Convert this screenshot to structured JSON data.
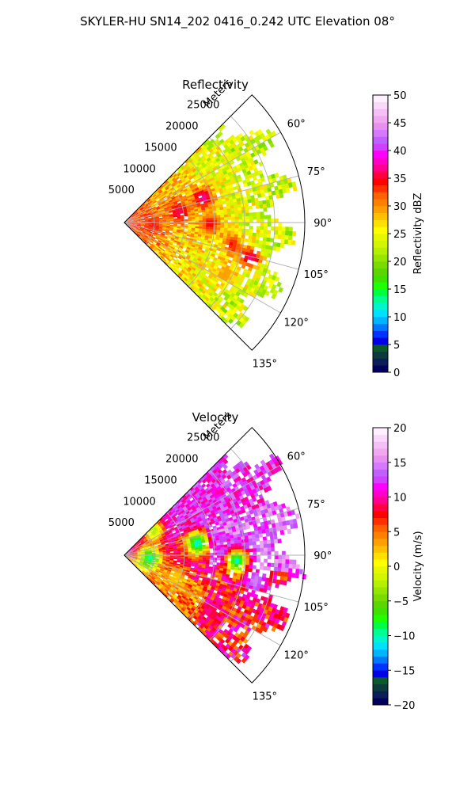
{
  "figure_title": "SKYLER-HU  SN14_202  0416_0.242 UTC Elevation 08°",
  "chart_data": [
    {
      "type": "heatmap",
      "projection": "polar-sector",
      "title": "Reflectivity",
      "radial_axis_label": "Meters",
      "radial_ticks": [
        "5000",
        "10000",
        "15000",
        "20000",
        "25000"
      ],
      "radial_tick_values": [
        5000,
        10000,
        15000,
        20000,
        25000
      ],
      "radial_max": 30000,
      "angle_ticks": [
        "60°",
        "75°",
        "90°",
        "105°",
        "120°",
        "135°"
      ],
      "angle_tick_values": [
        60,
        75,
        90,
        105,
        120,
        135
      ],
      "azimuth_range": [
        45,
        135
      ],
      "grid": true,
      "colorbar": {
        "label": "Reflectivity dBZ",
        "ticks": [
          "0",
          "5",
          "10",
          "15",
          "20",
          "25",
          "30",
          "35",
          "40",
          "45",
          "50"
        ],
        "range": [
          0,
          50
        ],
        "colors": [
          "#00005c",
          "#0a1f5a",
          "#0d3a3a",
          "#0a5a2a",
          "#0000e6",
          "#0033ff",
          "#0077ff",
          "#00b4ff",
          "#00e0ff",
          "#00f5d0",
          "#00ff90",
          "#00ff40",
          "#20ff00",
          "#40e000",
          "#5cd600",
          "#78dc00",
          "#96e600",
          "#b4f000",
          "#d2f500",
          "#e6f800",
          "#ffff00",
          "#ffe000",
          "#ffc000",
          "#ffa000",
          "#ff8000",
          "#ff6000",
          "#ff3000",
          "#ff0000",
          "#ff0040",
          "#ff0090",
          "#ff00c8",
          "#ff00ff",
          "#d040ff",
          "#c060ff",
          "#d878ff",
          "#e890f0",
          "#f0a8f0",
          "#f5c0f5",
          "#fad8fa",
          "#fff0ff"
        ]
      },
      "dominant_values_note_range": [
        18,
        38
      ],
      "hotspots": [
        {
          "azimuth": 78,
          "range": 9000,
          "value": 36
        },
        {
          "azimuth": 72,
          "range": 13500,
          "value": 37
        },
        {
          "azimuth": 90,
          "range": 14000,
          "value": 35
        },
        {
          "azimuth": 94,
          "range": 4500,
          "value": 34
        },
        {
          "azimuth": 101,
          "range": 18000,
          "value": 34
        },
        {
          "azimuth": 105,
          "range": 21500,
          "value": 37
        },
        {
          "azimuth": 116,
          "range": 18500,
          "value": 30
        }
      ]
    },
    {
      "type": "heatmap",
      "projection": "polar-sector",
      "title": "Velocity",
      "radial_axis_label": "Meters",
      "radial_ticks": [
        "5000",
        "10000",
        "15000",
        "20000",
        "25000"
      ],
      "radial_tick_values": [
        5000,
        10000,
        15000,
        20000,
        25000
      ],
      "radial_max": 30000,
      "angle_ticks": [
        "60°",
        "75°",
        "90°",
        "105°",
        "120°",
        "135°"
      ],
      "angle_tick_values": [
        60,
        75,
        90,
        105,
        120,
        135
      ],
      "azimuth_range": [
        45,
        135
      ],
      "grid": true,
      "colorbar": {
        "label": "Velocity (m/s)",
        "ticks": [
          "−20",
          "−15",
          "−10",
          "−5",
          "0",
          "5",
          "10",
          "15",
          "20"
        ],
        "range": [
          -20,
          20
        ],
        "colors": [
          "#00005c",
          "#0a1f5a",
          "#0d3a3a",
          "#0a5a2a",
          "#0000e6",
          "#0033ff",
          "#0077ff",
          "#00b4ff",
          "#00e0ff",
          "#00f5d0",
          "#00ff90",
          "#00ff40",
          "#20ff00",
          "#40e000",
          "#5cd600",
          "#78dc00",
          "#96e600",
          "#b4f000",
          "#d2f500",
          "#e6f800",
          "#ffff00",
          "#ffe000",
          "#ffc000",
          "#ffa000",
          "#ff8000",
          "#ff6000",
          "#ff3000",
          "#ff0000",
          "#ff0040",
          "#ff0090",
          "#ff00c8",
          "#ff00ff",
          "#d040ff",
          "#c060ff",
          "#d878ff",
          "#e890f0",
          "#f0a8f0",
          "#f5c0f5",
          "#fad8fa",
          "#fff0ff"
        ]
      },
      "dominant_values_note_range": [
        5,
        15
      ],
      "hotspots": [
        {
          "azimuth": 80,
          "range": 12000,
          "value": -11
        },
        {
          "azimuth": 92,
          "range": 18500,
          "value": -11
        },
        {
          "azimuth": 96,
          "range": 4000,
          "value": -10
        },
        {
          "azimuth": 50,
          "range": 6000,
          "value": -3
        },
        {
          "azimuth": 112,
          "range": 9000,
          "value": 2
        },
        {
          "azimuth": 122,
          "range": 17000,
          "value": 9
        },
        {
          "azimuth": 100,
          "range": 22000,
          "value": 15
        }
      ]
    }
  ]
}
